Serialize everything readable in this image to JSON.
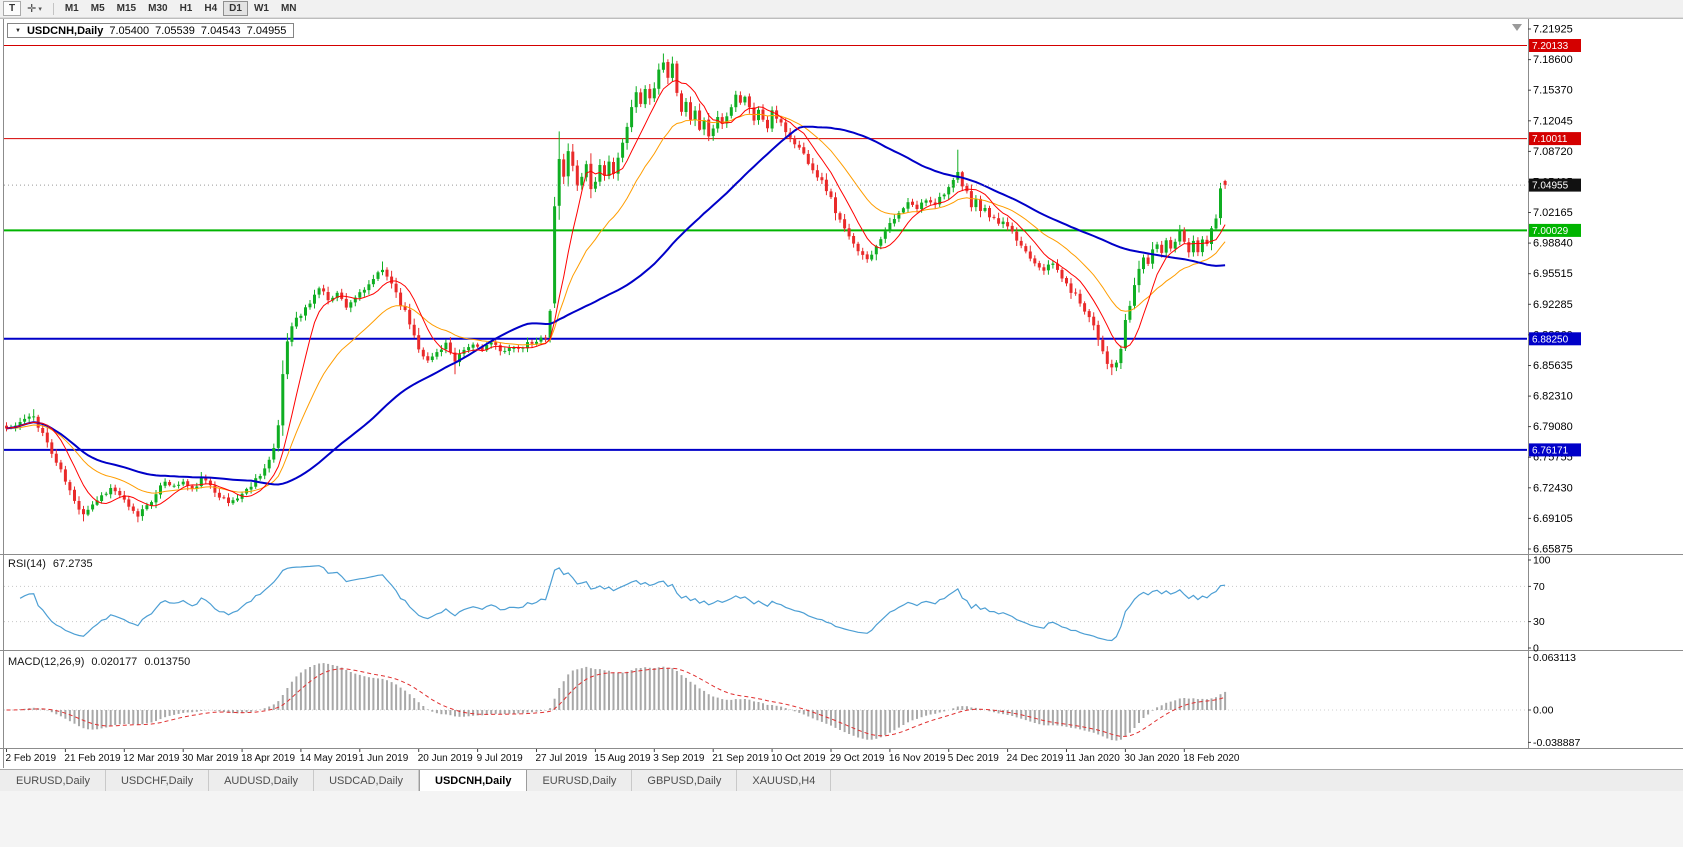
{
  "toolbar": {
    "text_tool_label": "T",
    "icons": {
      "draw_tool": "✛",
      "dropdown": "▾"
    },
    "timeframes": [
      "M1",
      "M5",
      "M15",
      "M30",
      "H1",
      "H4",
      "D1",
      "W1",
      "MN"
    ],
    "active_timeframe": "D1"
  },
  "chart": {
    "title": {
      "expander": "▼",
      "symbol": "USDCNH,Daily",
      "open": "7.05400",
      "high": "7.05539",
      "low": "7.04543",
      "close": "7.04955"
    },
    "price_axis_labels": [
      "7.21925",
      "7.18600",
      "7.15370",
      "7.12045",
      "7.08720",
      "7.05495",
      "7.02165",
      "6.98840",
      "6.95515",
      "6.92285",
      "6.88960",
      "6.85635",
      "6.82310",
      "6.79080",
      "6.75755",
      "6.72430",
      "6.69105",
      "6.65875"
    ],
    "time_axis_labels": [
      "2 Feb 2019",
      "21 Feb 2019",
      "12 Mar 2019",
      "30 Mar 2019",
      "18 Apr 2019",
      "14 May 2019",
      "1 Jun 2019",
      "20 Jun 2019",
      "9 Jul 2019",
      "27 Jul 2019",
      "15 Aug 2019",
      "3 Sep 2019",
      "21 Sep 2019",
      "10 Oct 2019",
      "29 Oct 2019",
      "16 Nov 2019",
      "5 Dec 2019",
      "24 Dec 2019",
      "11 Jan 2020",
      "30 Jan 2020",
      "18 Feb 2020"
    ],
    "hlines": [
      {
        "value": 7.20133,
        "label": "7.20133",
        "color": "#d40000",
        "width": 1
      },
      {
        "value": 7.10011,
        "label": "7.10011",
        "color": "#d40000",
        "width": 1
      },
      {
        "value": 7.00029,
        "label": "7.00029",
        "color": "#00b400",
        "width": 2
      },
      {
        "value": 6.8825,
        "label": "6.88250",
        "color": "#0000c8",
        "width": 2
      },
      {
        "value": 6.76171,
        "label": "6.76171",
        "color": "#0000c8",
        "width": 2
      }
    ],
    "current_price": {
      "value": 7.04955,
      "label": "7.04955",
      "tag_bg": "#111111"
    },
    "colors": {
      "background": "#ffffff",
      "candle_up": "#0fae22",
      "candle_down": "#e92a2a",
      "ma_fast": "#ff0000",
      "ma_mid": "#ff9d00",
      "ma_slow": "#0000c8",
      "rsi_line": "#4d9fd4",
      "macd_hist": "#a8a8a8",
      "macd_signal": "#e03030"
    }
  },
  "rsi_panel": {
    "name": "RSI(14)",
    "value": "67.2735",
    "axis_labels": [
      "100",
      "70",
      "30",
      "0"
    ],
    "axis_values": [
      100,
      70,
      30,
      0
    ],
    "levels": [
      70,
      30
    ]
  },
  "macd_panel": {
    "name": "MACD(12,26,9)",
    "main_value": "0.020177",
    "signal_value": "0.013750",
    "axis_labels": [
      "0.063113",
      "0.00",
      "-0.038887"
    ],
    "axis_values": [
      0.063113,
      0,
      -0.038887
    ]
  },
  "tabs": [
    {
      "label": "EURUSD,Daily",
      "active": false
    },
    {
      "label": "USDCHF,Daily",
      "active": false
    },
    {
      "label": "AUDUSD,Daily",
      "active": false
    },
    {
      "label": "USDCAD,Daily",
      "active": false
    },
    {
      "label": "USDCNH,Daily",
      "active": true
    },
    {
      "label": "EURUSD,Daily",
      "active": false
    },
    {
      "label": "GBPUSD,Daily",
      "active": false
    },
    {
      "label": "XAUUSD,H4",
      "active": false
    }
  ],
  "chart_data": {
    "type": "candlestick",
    "symbol": "USDCNH",
    "timeframe": "Daily",
    "bars": 270,
    "label_every_bars": 13,
    "seed": 11,
    "y_range": [
      6.65875,
      7.21925
    ],
    "x_labels": [
      "2 Feb 2019",
      "21 Feb 2019",
      "12 Mar 2019",
      "30 Mar 2019",
      "18 Apr 2019",
      "14 May 2019",
      "1 Jun 2019",
      "20 Jun 2019",
      "9 Jul 2019",
      "27 Jul 2019",
      "15 Aug 2019",
      "3 Sep 2019",
      "21 Sep 2019",
      "10 Oct 2019",
      "29 Oct 2019",
      "16 Nov 2019",
      "5 Dec 2019",
      "24 Dec 2019",
      "11 Jan 2020",
      "30 Jan 2020",
      "18 Feb 2020"
    ],
    "horizontal_levels": [
      7.20133,
      7.10011,
      7.00029,
      6.8825,
      6.76171
    ],
    "last_bar": {
      "open": 7.054,
      "high": 7.05539,
      "low": 7.04543,
      "close": 7.04955
    },
    "close_path_anchors": [
      [
        0,
        6.785
      ],
      [
        2,
        6.788
      ],
      [
        4,
        6.795
      ],
      [
        6,
        6.798
      ],
      [
        8,
        6.78
      ],
      [
        10,
        6.758
      ],
      [
        13,
        6.728
      ],
      [
        15,
        6.705
      ],
      [
        17,
        6.693
      ],
      [
        19,
        6.703
      ],
      [
        21,
        6.712
      ],
      [
        23,
        6.72
      ],
      [
        25,
        6.713
      ],
      [
        27,
        6.698
      ],
      [
        29,
        6.69
      ],
      [
        31,
        6.703
      ],
      [
        33,
        6.712
      ],
      [
        35,
        6.728
      ],
      [
        37,
        6.722
      ],
      [
        39,
        6.727
      ],
      [
        41,
        6.718
      ],
      [
        43,
        6.73
      ],
      [
        45,
        6.724
      ],
      [
        47,
        6.712
      ],
      [
        49,
        6.704
      ],
      [
        51,
        6.71
      ],
      [
        53,
        6.718
      ],
      [
        55,
        6.73
      ],
      [
        57,
        6.742
      ],
      [
        59,
        6.758
      ],
      [
        60,
        6.79
      ],
      [
        61,
        6.845
      ],
      [
        62,
        6.882
      ],
      [
        63,
        6.9
      ],
      [
        65,
        6.908
      ],
      [
        67,
        6.922
      ],
      [
        69,
        6.938
      ],
      [
        71,
        6.926
      ],
      [
        73,
        6.932
      ],
      [
        75,
        6.918
      ],
      [
        77,
        6.928
      ],
      [
        79,
        6.934
      ],
      [
        81,
        6.948
      ],
      [
        83,
        6.957
      ],
      [
        85,
        6.944
      ],
      [
        87,
        6.922
      ],
      [
        89,
        6.9
      ],
      [
        91,
        6.874
      ],
      [
        93,
        6.858
      ],
      [
        95,
        6.868
      ],
      [
        97,
        6.878
      ],
      [
        99,
        6.856
      ],
      [
        101,
        6.87
      ],
      [
        103,
        6.876
      ],
      [
        105,
        6.872
      ],
      [
        107,
        6.878
      ],
      [
        109,
        6.868
      ],
      [
        111,
        6.874
      ],
      [
        113,
        6.87
      ],
      [
        115,
        6.877
      ],
      [
        117,
        6.878
      ],
      [
        119,
        6.888
      ],
      [
        120,
        6.92
      ],
      [
        121,
        7.02
      ],
      [
        122,
        7.078
      ],
      [
        123,
        7.058
      ],
      [
        124,
        7.088
      ],
      [
        125,
        7.068
      ],
      [
        126,
        7.05
      ],
      [
        127,
        7.062
      ],
      [
        128,
        7.072
      ],
      [
        129,
        7.046
      ],
      [
        130,
        7.056
      ],
      [
        131,
        7.07
      ],
      [
        132,
        7.058
      ],
      [
        133,
        7.074
      ],
      [
        134,
        7.064
      ],
      [
        135,
        7.08
      ],
      [
        136,
        7.092
      ],
      [
        137,
        7.112
      ],
      [
        138,
        7.132
      ],
      [
        139,
        7.15
      ],
      [
        140,
        7.14
      ],
      [
        141,
        7.154
      ],
      [
        142,
        7.144
      ],
      [
        143,
        7.158
      ],
      [
        144,
        7.172
      ],
      [
        145,
        7.185
      ],
      [
        146,
        7.168
      ],
      [
        147,
        7.178
      ],
      [
        148,
        7.148
      ],
      [
        149,
        7.128
      ],
      [
        150,
        7.138
      ],
      [
        151,
        7.118
      ],
      [
        152,
        7.128
      ],
      [
        153,
        7.112
      ],
      [
        154,
        7.122
      ],
      [
        155,
        7.102
      ],
      [
        156,
        7.112
      ],
      [
        157,
        7.124
      ],
      [
        158,
        7.116
      ],
      [
        159,
        7.128
      ],
      [
        160,
        7.138
      ],
      [
        161,
        7.148
      ],
      [
        162,
        7.14
      ],
      [
        163,
        7.146
      ],
      [
        164,
        7.132
      ],
      [
        165,
        7.12
      ],
      [
        166,
        7.132
      ],
      [
        167,
        7.12
      ],
      [
        168,
        7.112
      ],
      [
        169,
        7.128
      ],
      [
        171,
        7.118
      ],
      [
        173,
        7.1
      ],
      [
        175,
        7.09
      ],
      [
        177,
        7.076
      ],
      [
        179,
        7.06
      ],
      [
        181,
        7.046
      ],
      [
        183,
        7.022
      ],
      [
        185,
        7.0
      ],
      [
        187,
        6.984
      ],
      [
        189,
        6.976
      ],
      [
        190,
        6.968
      ],
      [
        191,
        6.976
      ],
      [
        192,
        6.986
      ],
      [
        193,
        6.992
      ],
      [
        194,
        7.002
      ],
      [
        195,
        7.006
      ],
      [
        197,
        7.018
      ],
      [
        199,
        7.03
      ],
      [
        201,
        7.024
      ],
      [
        203,
        7.034
      ],
      [
        205,
        7.03
      ],
      [
        207,
        7.042
      ],
      [
        209,
        7.052
      ],
      [
        210,
        7.062
      ],
      [
        211,
        7.048
      ],
      [
        212,
        7.04
      ],
      [
        213,
        7.028
      ],
      [
        214,
        7.034
      ],
      [
        215,
        7.02
      ],
      [
        216,
        7.026
      ],
      [
        217,
        7.012
      ],
      [
        218,
        7.016
      ],
      [
        219,
        7.006
      ],
      [
        220,
        7.01
      ],
      [
        221,
        7.002
      ],
      [
        223,
        6.99
      ],
      [
        225,
        6.978
      ],
      [
        227,
        6.966
      ],
      [
        229,
        6.958
      ],
      [
        231,
        6.964
      ],
      [
        233,
        6.95
      ],
      [
        234,
        6.94
      ],
      [
        236,
        6.93
      ],
      [
        238,
        6.915
      ],
      [
        240,
        6.898
      ],
      [
        241,
        6.885
      ],
      [
        242,
        6.87
      ],
      [
        243,
        6.858
      ],
      [
        244,
        6.85
      ],
      [
        245,
        6.856
      ],
      [
        246,
        6.872
      ],
      [
        247,
        6.896
      ],
      [
        248,
        6.92
      ],
      [
        249,
        6.94
      ],
      [
        250,
        6.958
      ],
      [
        251,
        6.972
      ],
      [
        252,
        6.964
      ],
      [
        253,
        6.976
      ],
      [
        254,
        6.986
      ],
      [
        255,
        6.976
      ],
      [
        256,
        6.99
      ],
      [
        257,
        6.982
      ],
      [
        258,
        6.99
      ],
      [
        259,
        7.0
      ],
      [
        260,
        6.992
      ],
      [
        261,
        6.978
      ],
      [
        262,
        6.988
      ],
      [
        263,
        6.978
      ],
      [
        264,
        6.992
      ],
      [
        265,
        6.986
      ],
      [
        266,
        7.0
      ],
      [
        267,
        7.012
      ],
      [
        268,
        7.046
      ],
      [
        269,
        7.04955
      ]
    ],
    "overrides": {
      "6": {
        "h": 6.806
      },
      "17": {
        "l": 6.684
      },
      "29": {
        "l": 6.683
      },
      "83": {
        "h": 6.9665
      },
      "99": {
        "l": 6.844
      },
      "121": {
        "o": 6.921,
        "l": 6.916
      },
      "122": {
        "h": 7.108
      },
      "145": {
        "h": 7.1926
      },
      "210": {
        "h": 7.088
      },
      "244": {
        "l": 6.843
      },
      "268": {
        "h": 7.052
      },
      "269": {
        "o": 7.054,
        "h": 7.05539,
        "l": 7.04543,
        "c": 7.04955
      }
    },
    "moving_averages": [
      {
        "type": "sma",
        "period": 8,
        "color_key": "ma_fast"
      },
      {
        "type": "ema",
        "period": 21,
        "color_key": "ma_mid"
      },
      {
        "type": "sma",
        "period": 55,
        "color_key": "ma_slow"
      }
    ],
    "indicators": {
      "rsi": {
        "period": 14,
        "current": 67.2735,
        "scale": [
          0,
          100
        ],
        "levels": [
          30,
          70
        ]
      },
      "macd": {
        "fast": 12,
        "slow": 26,
        "signal": 9,
        "current_main": 0.020177,
        "current_signal": 0.01375,
        "scale": [
          -0.038887,
          0.063113
        ]
      }
    }
  }
}
